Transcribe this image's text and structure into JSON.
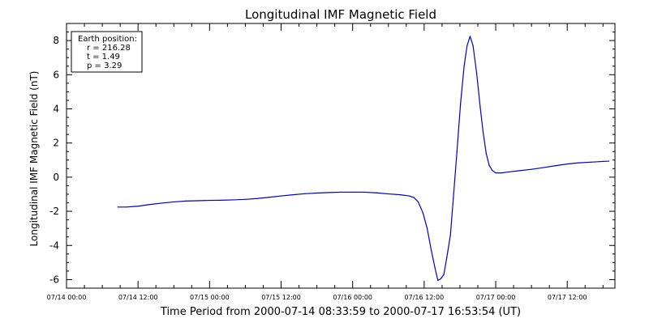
{
  "chart_data": {
    "type": "line",
    "title": "Longitudinal IMF Magnetic Field",
    "xlabel": "Time Period from 2000-07-14 08:33:59 to 2000-07-17 16:53:54 (UT)",
    "ylabel": "Longitudinal IMF Magnetic Field (nT)",
    "x_unit": "hours since 07/14 00:00",
    "xlim": [
      0,
      92
    ],
    "ylim": [
      -6.5,
      9
    ],
    "yticks": [
      -6,
      -4,
      -2,
      0,
      2,
      4,
      6,
      8
    ],
    "xticks": [
      {
        "x": 0,
        "label": "07/14 00:00"
      },
      {
        "x": 12,
        "label": "07/14 12:00"
      },
      {
        "x": 24,
        "label": "07/15 00:00"
      },
      {
        "x": 36,
        "label": "07/15 12:00"
      },
      {
        "x": 48,
        "label": "07/16 00:00"
      },
      {
        "x": 60,
        "label": "07/16 12:00"
      },
      {
        "x": 72,
        "label": "07/17 00:00"
      },
      {
        "x": 84,
        "label": "07/17 12:00"
      }
    ],
    "legend": {
      "title": "Earth position:",
      "lines": [
        "r = 216.28",
        "t = 1.49",
        "p = 3.29"
      ],
      "position": "top-left"
    },
    "series": [
      {
        "color": "#0000cc",
        "points": [
          [
            8.6,
            -1.75
          ],
          [
            10,
            -1.75
          ],
          [
            12,
            -1.7
          ],
          [
            14,
            -1.6
          ],
          [
            16,
            -1.52
          ],
          [
            18,
            -1.45
          ],
          [
            20,
            -1.4
          ],
          [
            22,
            -1.38
          ],
          [
            24,
            -1.36
          ],
          [
            26,
            -1.35
          ],
          [
            28,
            -1.33
          ],
          [
            30,
            -1.3
          ],
          [
            32,
            -1.25
          ],
          [
            34,
            -1.18
          ],
          [
            36,
            -1.1
          ],
          [
            38,
            -1.03
          ],
          [
            40,
            -0.97
          ],
          [
            42,
            -0.93
          ],
          [
            44,
            -0.9
          ],
          [
            46,
            -0.88
          ],
          [
            48,
            -0.88
          ],
          [
            50,
            -0.88
          ],
          [
            52,
            -0.92
          ],
          [
            54,
            -0.98
          ],
          [
            56,
            -1.03
          ],
          [
            57.5,
            -1.1
          ],
          [
            58.3,
            -1.2
          ],
          [
            59,
            -1.45
          ],
          [
            59.8,
            -2.1
          ],
          [
            60.5,
            -3.0
          ],
          [
            61.2,
            -4.3
          ],
          [
            61.8,
            -5.3
          ],
          [
            62.3,
            -6.05
          ],
          [
            62.8,
            -5.95
          ],
          [
            63.3,
            -5.7
          ],
          [
            63.8,
            -4.7
          ],
          [
            64.4,
            -3.4
          ],
          [
            64.9,
            -1.2
          ],
          [
            65.5,
            1.5
          ],
          [
            66.1,
            4.3
          ],
          [
            66.7,
            6.5
          ],
          [
            67.2,
            7.7
          ],
          [
            67.7,
            8.25
          ],
          [
            68.2,
            7.7
          ],
          [
            68.8,
            6.1
          ],
          [
            69.4,
            4.1
          ],
          [
            69.9,
            2.6
          ],
          [
            70.4,
            1.4
          ],
          [
            70.9,
            0.7
          ],
          [
            71.4,
            0.4
          ],
          [
            72,
            0.25
          ],
          [
            73,
            0.25
          ],
          [
            74,
            0.3
          ],
          [
            76,
            0.38
          ],
          [
            78,
            0.46
          ],
          [
            80,
            0.56
          ],
          [
            82,
            0.67
          ],
          [
            84,
            0.77
          ],
          [
            86,
            0.84
          ],
          [
            88,
            0.88
          ],
          [
            90,
            0.92
          ],
          [
            91,
            0.94
          ]
        ]
      }
    ]
  }
}
